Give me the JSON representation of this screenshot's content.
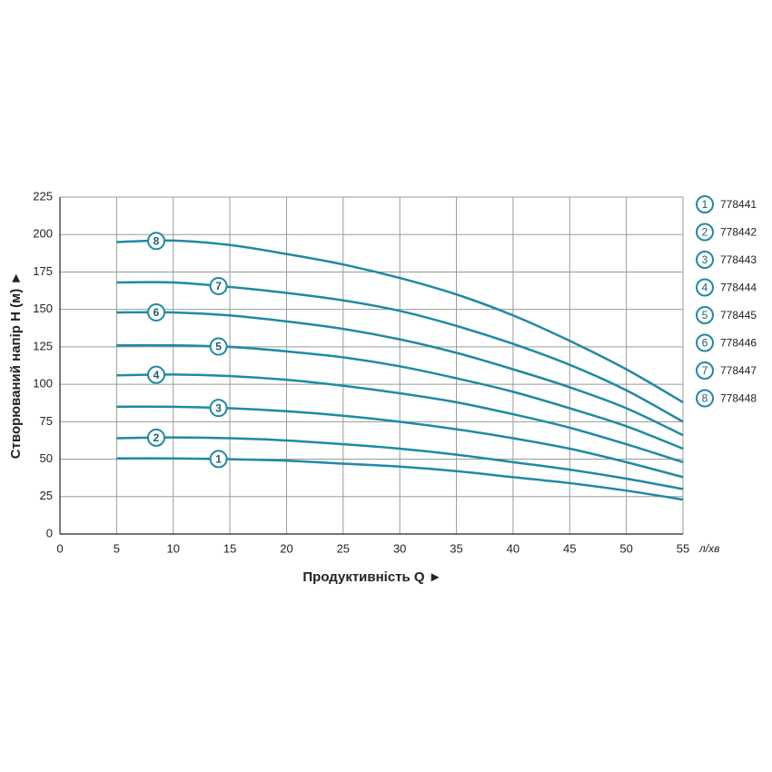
{
  "chart_data": {
    "type": "line",
    "y_label": "Створюваний напір H (м) ►",
    "x_label": "Продуктивність  Q ►",
    "x_unit": "л/хв",
    "x": [
      5,
      10,
      15,
      20,
      25,
      30,
      35,
      40,
      45,
      50,
      55
    ],
    "series": [
      {
        "name": "778441",
        "label": "1",
        "color": "#1f8aa3",
        "values": [
          50.5,
          50.5,
          50,
          49,
          47,
          45,
          42,
          38,
          34,
          29,
          23
        ]
      },
      {
        "name": "778442",
        "label": "2",
        "color": "#1f8aa3",
        "values": [
          64,
          64.5,
          64,
          62.5,
          60,
          57,
          53,
          48,
          43,
          37,
          30
        ]
      },
      {
        "name": "778443",
        "label": "3",
        "color": "#1f8aa3",
        "values": [
          85,
          85,
          84,
          82,
          79,
          75,
          70,
          64,
          57,
          48,
          38
        ]
      },
      {
        "name": "778444",
        "label": "4",
        "color": "#1f8aa3",
        "values": [
          106,
          106.5,
          105.5,
          103,
          99,
          94,
          88,
          80,
          71,
          60,
          48
        ]
      },
      {
        "name": "778445",
        "label": "5",
        "color": "#1f8aa3",
        "values": [
          126,
          126,
          125,
          122,
          118,
          112,
          104,
          95,
          84,
          72,
          57
        ]
      },
      {
        "name": "778446",
        "label": "6",
        "color": "#1f8aa3",
        "values": [
          148,
          148,
          146,
          142,
          137,
          130,
          121,
          110,
          98,
          84,
          66
        ]
      },
      {
        "name": "778447",
        "label": "7",
        "color": "#1f8aa3",
        "values": [
          168,
          168,
          165,
          161,
          156,
          149,
          139,
          127,
          113,
          96,
          75
        ]
      },
      {
        "name": "778448",
        "label": "8",
        "color": "#1f8aa3",
        "values": [
          195,
          196,
          193,
          187,
          180,
          171,
          160,
          146,
          129,
          110,
          88
        ]
      }
    ],
    "xlim": [
      0,
      55
    ],
    "xticks": [
      0,
      5,
      10,
      15,
      20,
      25,
      30,
      35,
      40,
      45,
      50,
      55
    ],
    "ylim": [
      0,
      225
    ],
    "yticks": [
      0,
      25,
      50,
      75,
      100,
      125,
      150,
      175,
      200,
      225
    ],
    "grid": true
  }
}
